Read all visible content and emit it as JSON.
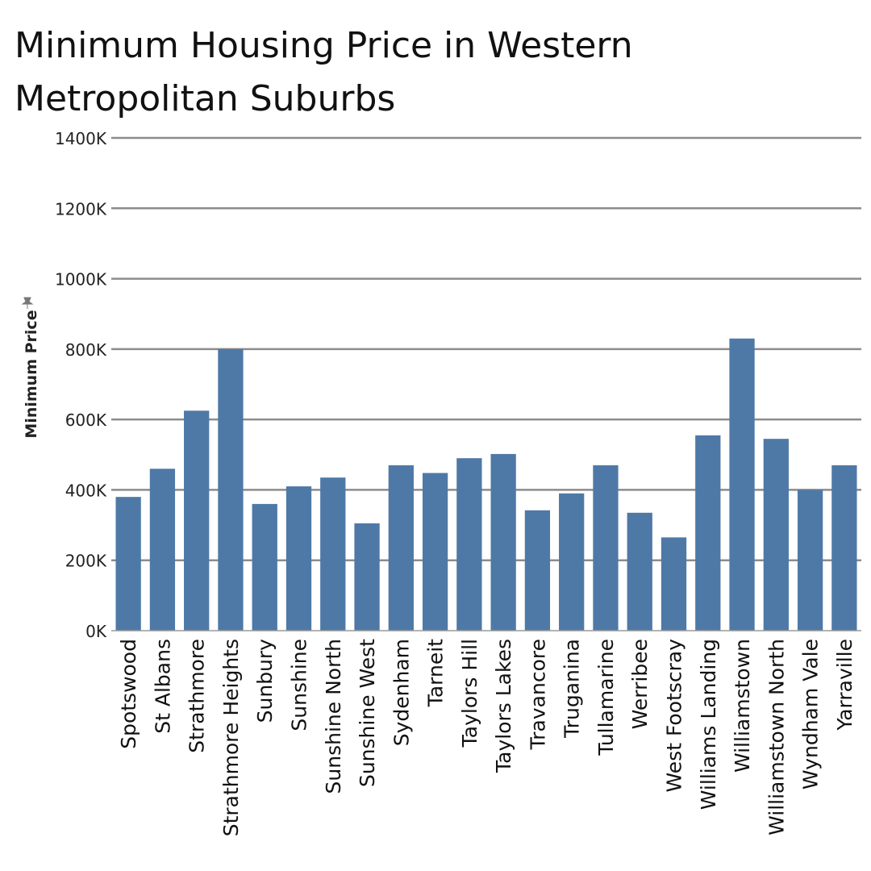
{
  "chart_data": {
    "type": "bar",
    "title": "Minimum Housing Price in Western Metropolitan Suburbs",
    "ylabel": "Minimum Price",
    "xlabel": "",
    "ylim": [
      0,
      1400000
    ],
    "yticks": [
      0,
      200000,
      400000,
      600000,
      800000,
      1000000,
      1200000,
      1400000
    ],
    "ytick_labels": [
      "0K",
      "200K",
      "400K",
      "600K",
      "800K",
      "1000K",
      "1200K",
      "1400K"
    ],
    "grid": true,
    "bar_color": "#4e79a7",
    "categories": [
      "Spotswood",
      "St Albans",
      "Strathmore",
      "Strathmore Heights",
      "Sunbury",
      "Sunshine",
      "Sunshine North",
      "Sunshine West",
      "Sydenham",
      "Tarneit",
      "Taylors Hill",
      "Taylors Lakes",
      "Travancore",
      "Truganina",
      "Tullamarine",
      "Werribee",
      "West Footscray",
      "Williams Landing",
      "Williamstown",
      "Williamstown North",
      "Wyndham Vale",
      "Yarraville"
    ],
    "values": [
      380000,
      460000,
      625000,
      800000,
      360000,
      410000,
      435000,
      305000,
      470000,
      448000,
      490000,
      502000,
      342000,
      390000,
      470000,
      335000,
      265000,
      555000,
      830000,
      545000,
      400000,
      470000
    ]
  }
}
